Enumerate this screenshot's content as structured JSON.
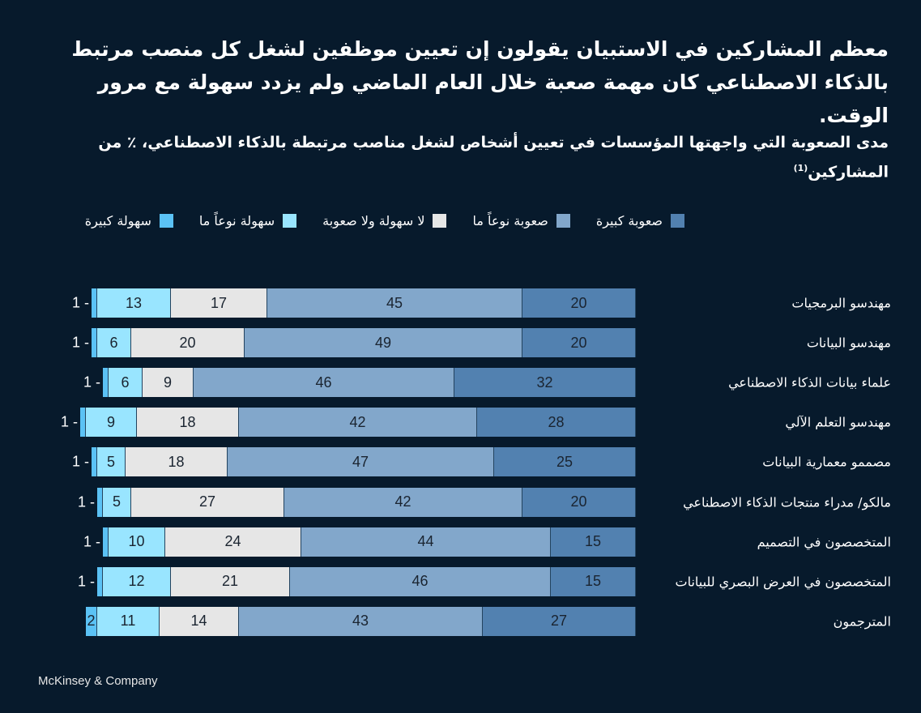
{
  "header": {
    "title": "معظم المشاركين في الاستبيان يقولون إن تعيين موظفين لشغل كل منصب مرتبط بالذكاء الاصطناعي كان مهمة صعبة خلال العام الماضي ولم يزدد سهولة مع مرور الوقت.",
    "subtitle": "مدى الصعوبة التي واجهتها المؤسسات في تعيين أشخاص لشغل مناصب مرتبطة بالذكاء الاصطناعي، ٪ من المشاركين",
    "subtitle_note": "(1)"
  },
  "footer": {
    "brand": "McKinsey & Company"
  },
  "chart_data": {
    "type": "bar",
    "orientation": "horizontal",
    "stacked": true,
    "title": "مدى الصعوبة التي واجهتها المؤسسات في تعيين أشخاص لشغل مناصب مرتبطة بالذكاء الاصطناعي، ٪ من المشاركين",
    "xlabel": "",
    "ylabel": "",
    "legend_position": "top",
    "categories": [
      "مهندسو البرمجيات",
      "مهندسو البيانات",
      "علماء بيانات الذكاء الاصطناعي",
      "مهندسو التعلم الآلي",
      "مصممو معمارية البيانات",
      "مالكو/ مدراء منتجات الذكاء الاصطناعي",
      "المتخصصون في التصميم",
      "المتخصصون في العرض البصري للبيانات",
      "المترجمون"
    ],
    "series": [
      {
        "name": "صعوبة كبيرة",
        "color": "#5281b0",
        "values": [
          20,
          20,
          32,
          28,
          25,
          20,
          15,
          15,
          27
        ]
      },
      {
        "name": "صعوبة نوعاً ما",
        "color": "#82a7cb",
        "values": [
          45,
          49,
          46,
          42,
          47,
          42,
          44,
          46,
          43
        ]
      },
      {
        "name": "لا سهولة ولا صعوبة",
        "color": "#e6e6e6",
        "values": [
          17,
          20,
          9,
          18,
          18,
          27,
          24,
          21,
          14
        ]
      },
      {
        "name": "سهولة نوعاً ما",
        "color": "#99e5ff",
        "values": [
          13,
          6,
          6,
          9,
          5,
          5,
          10,
          12,
          11
        ]
      },
      {
        "name": "سهولة كبيرة",
        "color": "#5bc2f5",
        "values": [
          1,
          1,
          1,
          1,
          1,
          1,
          1,
          1,
          2
        ]
      }
    ],
    "legend": [
      "صعوبة كبيرة",
      "صعوبة نوعاً ما",
      "لا سهولة ولا صعوبة",
      "سهولة نوعاً ما",
      "سهولة كبيرة"
    ]
  }
}
